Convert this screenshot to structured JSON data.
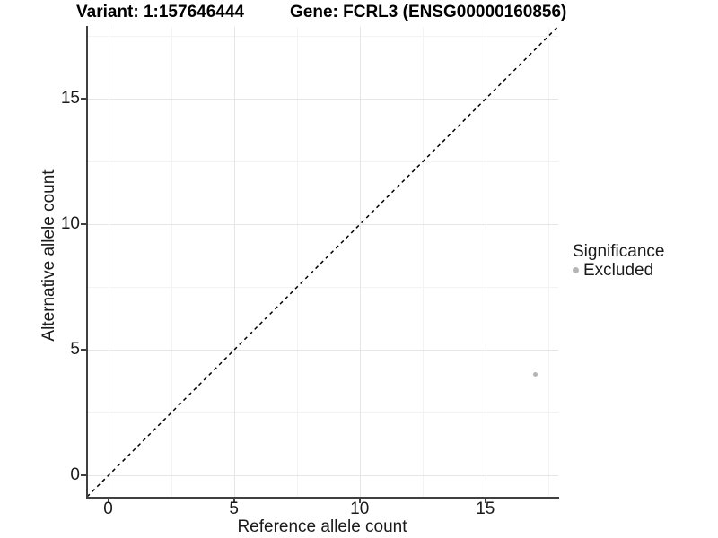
{
  "figure": {
    "title_left": "Variant: 1:157646444",
    "title_right": "Gene: FCRL3 (ENSG00000160856)"
  },
  "chart_data": {
    "type": "scatter",
    "title": "Variant: 1:157646444 — Gene: FCRL3 (ENSG00000160856)",
    "xlabel": "Reference allele count",
    "ylabel": "Alternative allele count",
    "xlim": [
      -0.86,
      17.9
    ],
    "ylim": [
      -0.86,
      17.86
    ],
    "xticks": [
      0,
      5,
      10,
      15
    ],
    "yticks": [
      0,
      5,
      10,
      15
    ],
    "xminor": [
      2.5,
      7.5,
      12.5,
      17.5
    ],
    "yminor": [
      2.5,
      7.5,
      12.5,
      17.5
    ],
    "grid": true,
    "series": [
      {
        "name": "Excluded",
        "color": "#b5b5b5",
        "points": [
          {
            "x": 17,
            "y": 4
          }
        ]
      }
    ],
    "reference_line": {
      "kind": "identity y=x",
      "style": "dashed",
      "color": "#000000"
    },
    "legend": {
      "title": "Significance",
      "position": "right",
      "items": [
        {
          "label": "Excluded",
          "color": "#b5b5b5"
        }
      ]
    },
    "colors": {
      "axis": "#404040",
      "grid_major": "#e6e6e6",
      "grid_minor": "#f3f3f3",
      "text": "#1a1a1a"
    }
  }
}
